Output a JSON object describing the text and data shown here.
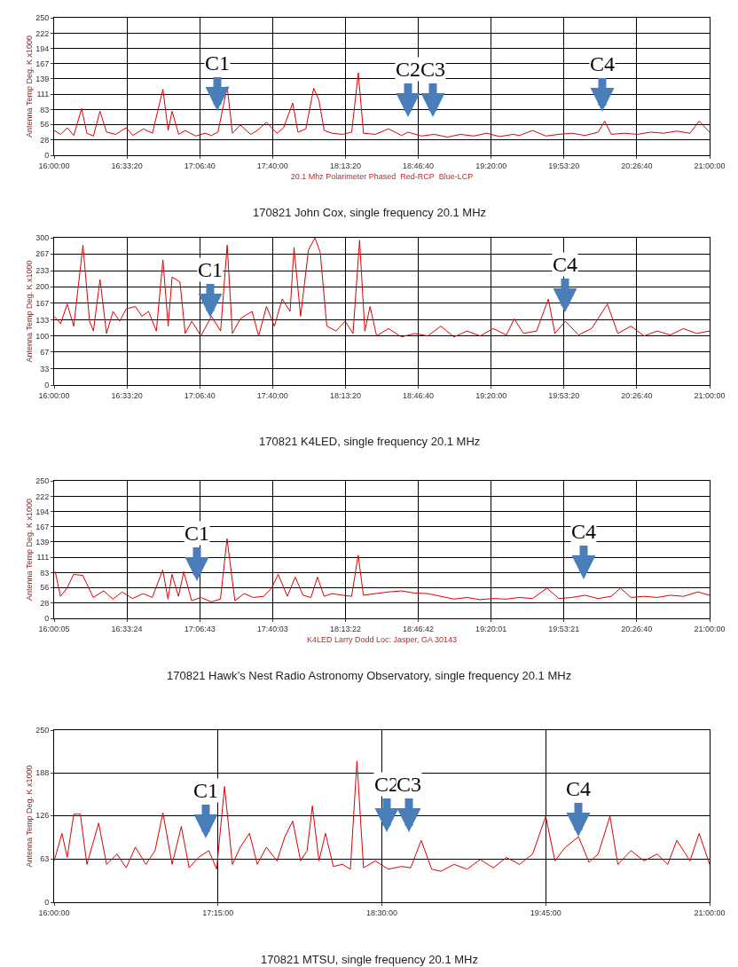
{
  "chart_data": [
    {
      "type": "line",
      "ylabel": "Antenna Temp Deg. K x1000",
      "xlabel": "20.1 Mhz Polarimeter Phased  Red-RCP  Blue-LCP",
      "grid": true,
      "marker": "none",
      "line_style": "solid",
      "xlim": [
        16,
        21
      ],
      "xticks": [
        {
          "value": 16,
          "label": "16:00:00"
        },
        {
          "value": 16.5556,
          "label": "16:33:20"
        },
        {
          "value": 17.1111,
          "label": "17:06:40"
        },
        {
          "value": 17.6667,
          "label": "17:40:00"
        },
        {
          "value": 18.2222,
          "label": "18:13:20"
        },
        {
          "value": 18.7778,
          "label": "18:46:40"
        },
        {
          "value": 19.3333,
          "label": "19:20:00"
        },
        {
          "value": 19.8889,
          "label": "19:53:20"
        },
        {
          "value": 20.4444,
          "label": "20:26:40"
        },
        {
          "value": 21,
          "label": "21:00:00"
        }
      ],
      "ylim": [
        0,
        250
      ],
      "yticks": [
        0,
        28,
        56,
        83,
        111,
        139,
        167,
        194,
        222,
        250
      ],
      "series": [
        {
          "color": "#e00000",
          "x": [
            16.0,
            16.05,
            16.1,
            16.15,
            16.21,
            16.25,
            16.3,
            16.35,
            16.4,
            16.47,
            16.55,
            16.6,
            16.68,
            16.75,
            16.83,
            16.87,
            16.9,
            16.95,
            17.0,
            17.08,
            17.15,
            17.2,
            17.25,
            17.32,
            17.36,
            17.42,
            17.5,
            17.55,
            17.62,
            17.7,
            17.75,
            17.82,
            17.86,
            17.92,
            17.98,
            18.02,
            18.06,
            18.12,
            18.2,
            18.27,
            18.32,
            18.36,
            18.45,
            18.55,
            18.65,
            18.7,
            18.8,
            18.9,
            19.0,
            19.1,
            19.2,
            19.3,
            19.4,
            19.5,
            19.55,
            19.65,
            19.75,
            19.85,
            19.95,
            20.05,
            20.15,
            20.2,
            20.25,
            20.35,
            20.45,
            20.55,
            20.65,
            20.75,
            20.85,
            20.92,
            21.0
          ],
          "values": [
            45,
            38,
            50,
            36,
            85,
            40,
            35,
            80,
            42,
            38,
            50,
            36,
            48,
            40,
            120,
            45,
            80,
            38,
            45,
            35,
            40,
            36,
            42,
            125,
            40,
            55,
            38,
            45,
            60,
            40,
            50,
            95,
            42,
            48,
            122,
            100,
            45,
            40,
            38,
            42,
            150,
            40,
            38,
            48,
            36,
            42,
            35,
            38,
            33,
            38,
            35,
            40,
            34,
            38,
            36,
            45,
            35,
            38,
            40,
            36,
            42,
            62,
            38,
            40,
            38,
            42,
            40,
            44,
            40,
            62,
            42
          ]
        }
      ],
      "annotations": [
        "C1",
        "C2",
        "C3",
        "C4",
        "170821 John Cox, single frequency 20.1 MHz"
      ]
    },
    {
      "type": "line",
      "ylabel": "Antenna Temp Deg. K x1000",
      "grid": true,
      "marker": "none",
      "line_style": "solid",
      "xlim": [
        16,
        21
      ],
      "xticks": [
        {
          "value": 16,
          "label": "16:00:00"
        },
        {
          "value": 16.5556,
          "label": "16:33:20"
        },
        {
          "value": 17.1111,
          "label": "17:06:40"
        },
        {
          "value": 17.6667,
          "label": "17:40:00"
        },
        {
          "value": 18.2222,
          "label": "18:13:20"
        },
        {
          "value": 18.7778,
          "label": "18:46:40"
        },
        {
          "value": 19.3333,
          "label": "19:20:00"
        },
        {
          "value": 19.8889,
          "label": "19:53:20"
        },
        {
          "value": 20.4444,
          "label": "20:26:40"
        },
        {
          "value": 21,
          "label": "21:00:00"
        }
      ],
      "ylim": [
        0,
        300
      ],
      "yticks": [
        0,
        33,
        67,
        100,
        133,
        167,
        200,
        233,
        267,
        300
      ],
      "series": [
        {
          "color": "#e00000",
          "x": [
            16.0,
            16.05,
            16.1,
            16.15,
            16.22,
            16.27,
            16.3,
            16.35,
            16.4,
            16.45,
            16.5,
            16.55,
            16.62,
            16.67,
            16.72,
            16.78,
            16.83,
            16.87,
            16.9,
            16.96,
            17.0,
            17.05,
            17.12,
            17.2,
            17.27,
            17.32,
            17.36,
            17.42,
            17.51,
            17.56,
            17.62,
            17.68,
            17.74,
            17.8,
            17.83,
            17.88,
            17.94,
            17.99,
            18.03,
            18.08,
            18.15,
            18.22,
            18.28,
            18.33,
            18.37,
            18.41,
            18.46,
            18.55,
            18.65,
            18.75,
            18.85,
            18.95,
            19.05,
            19.15,
            19.25,
            19.35,
            19.45,
            19.51,
            19.58,
            19.68,
            19.77,
            19.82,
            19.9,
            20.0,
            20.1,
            20.22,
            20.3,
            20.4,
            20.5,
            20.6,
            20.7,
            20.8,
            20.9,
            21.0
          ],
          "values": [
            140,
            125,
            165,
            120,
            285,
            130,
            110,
            215,
            105,
            150,
            130,
            155,
            160,
            140,
            150,
            110,
            255,
            120,
            220,
            210,
            105,
            130,
            100,
            140,
            110,
            285,
            105,
            135,
            150,
            100,
            160,
            120,
            175,
            150,
            280,
            140,
            275,
            300,
            270,
            120,
            110,
            130,
            105,
            295,
            110,
            160,
            100,
            115,
            98,
            105,
            100,
            120,
            98,
            110,
            100,
            115,
            102,
            135,
            105,
            110,
            175,
            105,
            130,
            102,
            115,
            165,
            105,
            120,
            100,
            110,
            102,
            115,
            105,
            110
          ]
        }
      ],
      "annotations": [
        "C1",
        "C4",
        "170821 K4LED, single frequency 20.1 MHz"
      ]
    },
    {
      "type": "line",
      "ylabel": "Antenna Temp Deg. K x1000",
      "xlabel": "K4LED Larry Dodd Loc: Jasper, GA 30143",
      "grid": true,
      "marker": "none",
      "line_style": "solid",
      "xlim": [
        16.0014,
        21
      ],
      "xticks": [
        {
          "value": 16.0014,
          "label": "16:00:05"
        },
        {
          "value": 16.5567,
          "label": "16:33:24"
        },
        {
          "value": 17.1119,
          "label": "17:06:43"
        },
        {
          "value": 17.6675,
          "label": "17:40:03"
        },
        {
          "value": 18.2228,
          "label": "18:13:22"
        },
        {
          "value": 18.7783,
          "label": "18:46:42"
        },
        {
          "value": 19.3336,
          "label": "19:20:01"
        },
        {
          "value": 19.8892,
          "label": "19:53:21"
        },
        {
          "value": 20.4444,
          "label": "20:26:40"
        },
        {
          "value": 21,
          "label": "21:00:00"
        }
      ],
      "ylim": [
        0,
        250
      ],
      "yticks": [
        0,
        28,
        56,
        83,
        111,
        139,
        167,
        194,
        222,
        250
      ],
      "series": [
        {
          "color": "#e00000",
          "x": [
            16.01,
            16.05,
            16.1,
            16.15,
            16.22,
            16.3,
            16.38,
            16.45,
            16.52,
            16.6,
            16.68,
            16.75,
            16.83,
            16.87,
            16.9,
            16.95,
            16.99,
            17.05,
            17.12,
            17.2,
            17.27,
            17.32,
            17.38,
            17.45,
            17.52,
            17.6,
            17.66,
            17.71,
            17.78,
            17.84,
            17.9,
            17.96,
            18.01,
            18.06,
            18.12,
            18.2,
            18.27,
            18.32,
            18.36,
            18.45,
            18.55,
            18.65,
            18.75,
            18.85,
            18.95,
            19.05,
            19.15,
            19.25,
            19.35,
            19.45,
            19.55,
            19.65,
            19.76,
            19.85,
            19.95,
            20.05,
            20.15,
            20.25,
            20.32,
            20.4,
            20.5,
            20.6,
            20.7,
            20.8,
            20.91,
            21.0
          ],
          "values": [
            85,
            40,
            55,
            80,
            78,
            38,
            50,
            35,
            48,
            36,
            45,
            38,
            88,
            35,
            80,
            40,
            85,
            32,
            38,
            30,
            35,
            145,
            32,
            45,
            38,
            40,
            55,
            80,
            40,
            75,
            42,
            38,
            75,
            40,
            45,
            42,
            40,
            115,
            42,
            45,
            48,
            50,
            46,
            45,
            40,
            35,
            38,
            34,
            36,
            35,
            38,
            36,
            55,
            36,
            38,
            42,
            36,
            40,
            55,
            38,
            40,
            38,
            42,
            40,
            48,
            42
          ]
        }
      ],
      "annotations": [
        "C1",
        "C4",
        "170821 Hawk’s Nest Radio Astronomy Observatory, single frequency 20.1 MHz"
      ]
    },
    {
      "type": "line",
      "ylabel": "Antenna Temp Deg. K x1000",
      "grid": true,
      "marker": "none",
      "line_style": "solid",
      "xlim": [
        16,
        21
      ],
      "xticks": [
        {
          "value": 16,
          "label": "16:00:00"
        },
        {
          "value": 17.25,
          "label": "17:15:00"
        },
        {
          "value": 18.5,
          "label": "18:30:00"
        },
        {
          "value": 19.75,
          "label": "19:45:00"
        },
        {
          "value": 21,
          "label": "21:00:00"
        }
      ],
      "ylim": [
        0,
        250
      ],
      "yticks": [
        0,
        63,
        126,
        188,
        250
      ],
      "series": [
        {
          "color": "#e00000",
          "x": [
            16.0,
            16.06,
            16.1,
            16.15,
            16.2,
            16.25,
            16.34,
            16.4,
            16.48,
            16.55,
            16.62,
            16.7,
            16.77,
            16.83,
            16.9,
            16.97,
            17.03,
            17.1,
            17.18,
            17.24,
            17.3,
            17.36,
            17.42,
            17.49,
            17.55,
            17.62,
            17.7,
            17.76,
            17.82,
            17.88,
            17.93,
            17.97,
            18.02,
            18.07,
            18.13,
            18.2,
            18.26,
            18.31,
            18.36,
            18.45,
            18.55,
            18.65,
            18.72,
            18.8,
            18.88,
            18.95,
            19.05,
            19.15,
            19.25,
            19.35,
            19.45,
            19.55,
            19.65,
            19.75,
            19.82,
            19.9,
            20.0,
            20.08,
            20.15,
            20.24,
            20.3,
            20.4,
            20.5,
            20.6,
            20.68,
            20.75,
            20.85,
            20.92,
            21.0
          ],
          "values": [
            60,
            100,
            65,
            128,
            128,
            55,
            115,
            55,
            70,
            50,
            80,
            55,
            75,
            130,
            55,
            110,
            50,
            65,
            75,
            48,
            168,
            55,
            80,
            100,
            55,
            80,
            60,
            95,
            118,
            60,
            75,
            140,
            60,
            100,
            52,
            55,
            48,
            205,
            50,
            60,
            48,
            52,
            50,
            90,
            48,
            45,
            55,
            48,
            62,
            50,
            65,
            55,
            70,
            125,
            60,
            80,
            95,
            58,
            70,
            125,
            55,
            75,
            60,
            70,
            55,
            90,
            60,
            100,
            55
          ]
        }
      ],
      "annotations": [
        "C1",
        "C2",
        "C3",
        "C4",
        "170821 MTSU, single frequency 20.1 MHz"
      ]
    }
  ]
}
